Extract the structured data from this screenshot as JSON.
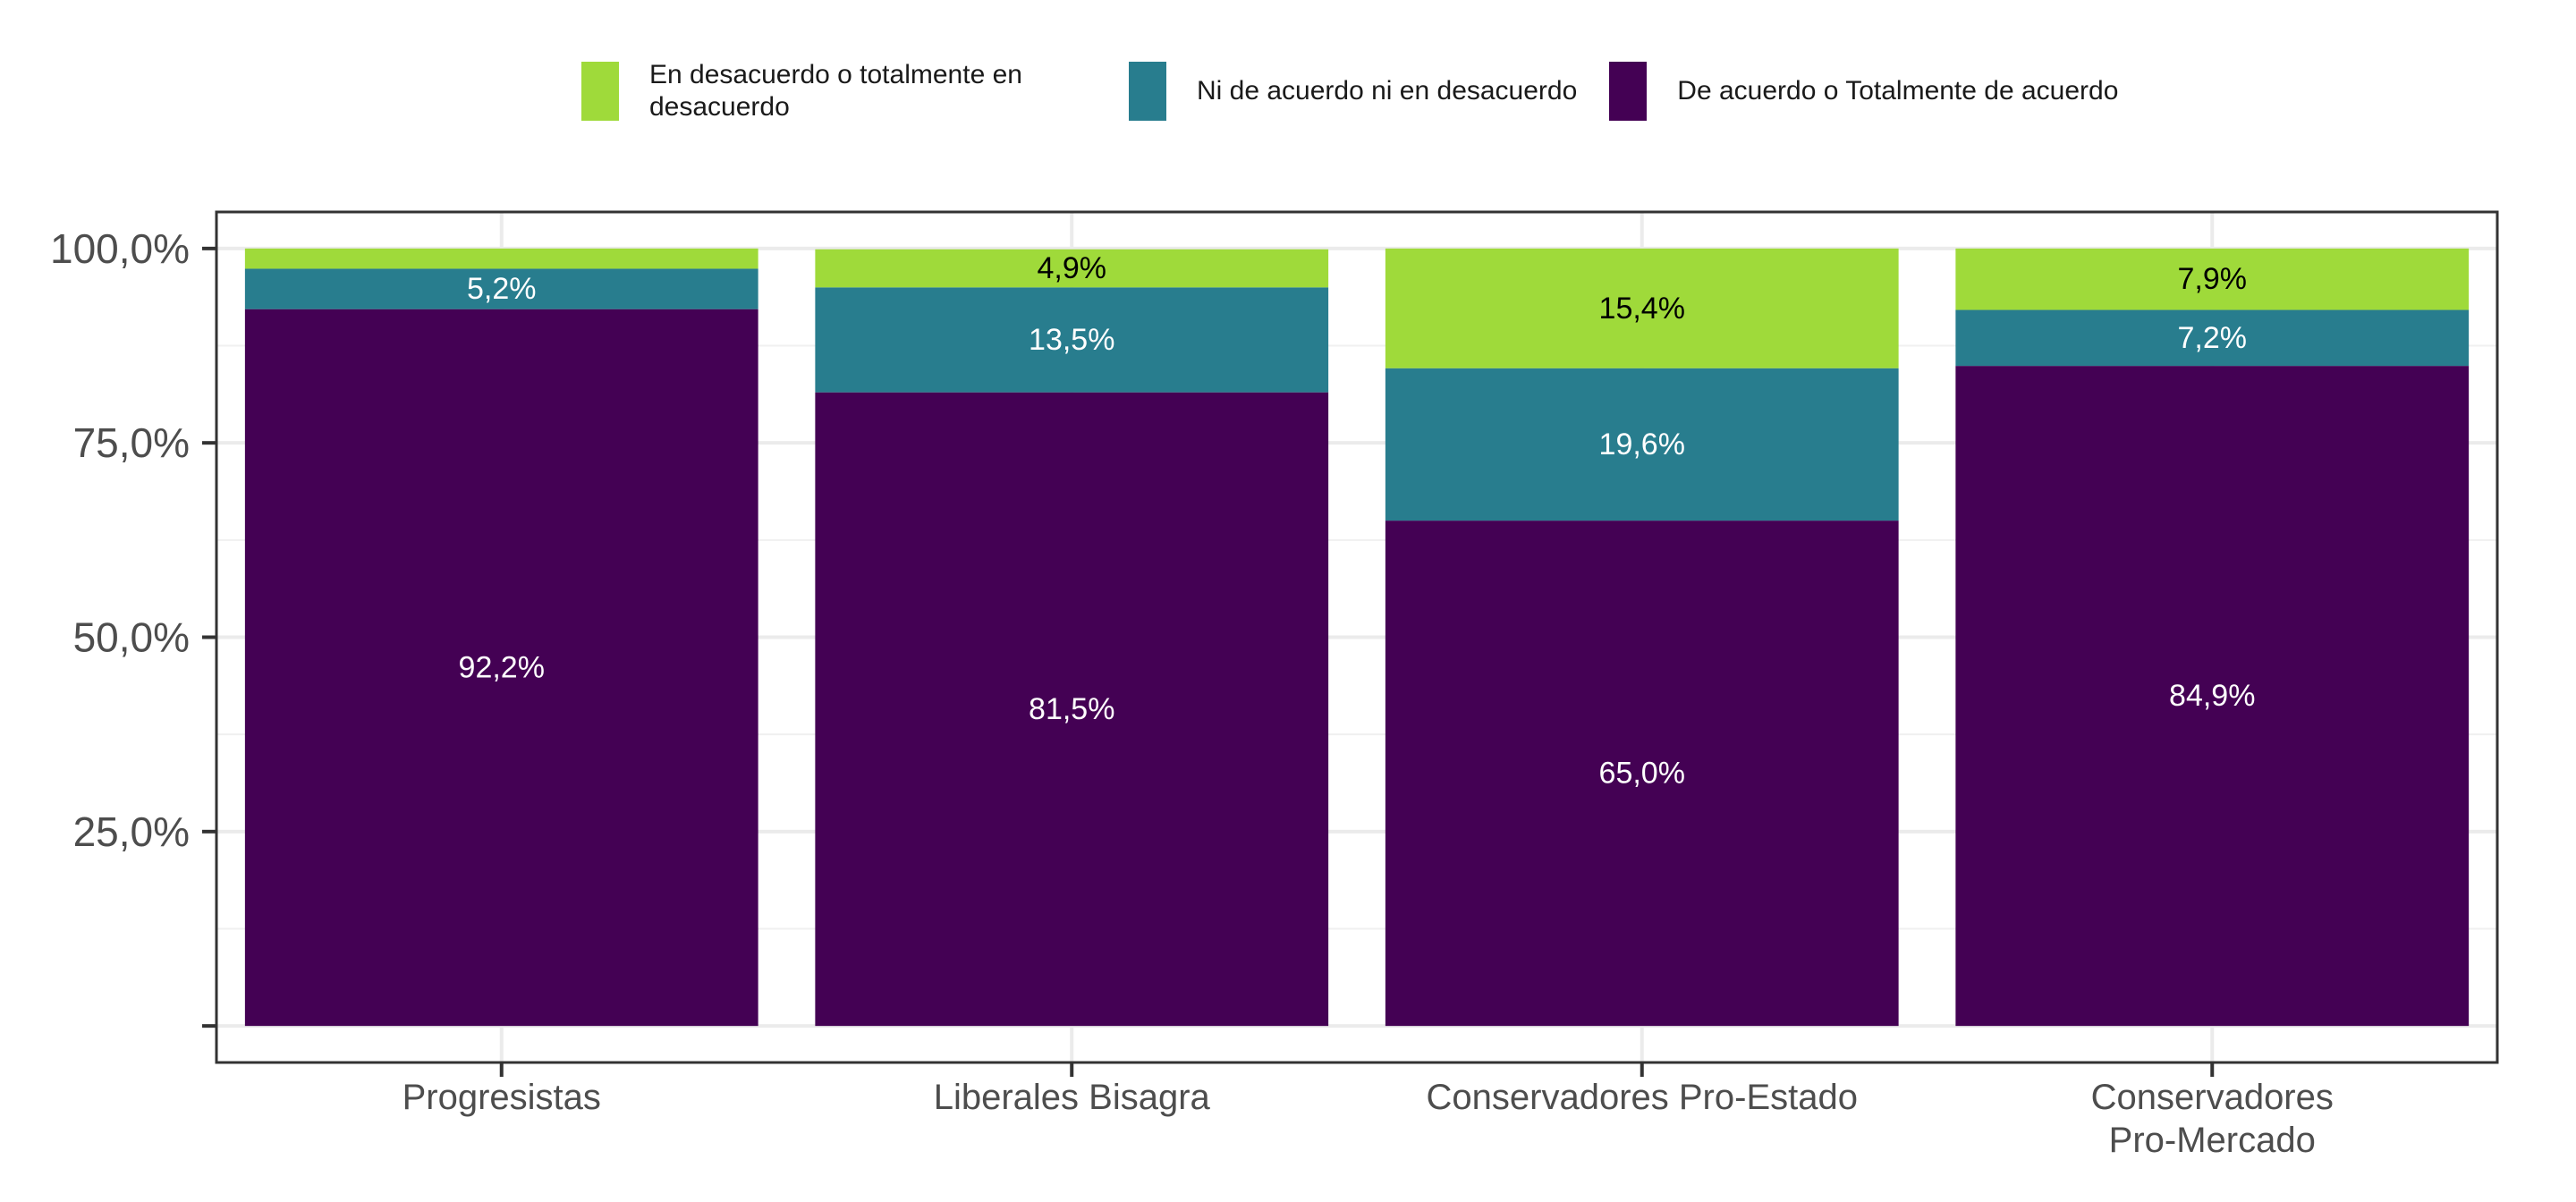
{
  "chart_data": {
    "type": "bar",
    "stacked": true,
    "categories": [
      "Progresistas",
      "Liberales Bisagra",
      "Conservadores Pro-Estado",
      "Conservadores\nPro-Mercado"
    ],
    "series": [
      {
        "name": "De acuerdo o Totalmente de acuerdo",
        "color": "#440154",
        "values": [
          92.2,
          81.5,
          65.0,
          84.9
        ],
        "labels": [
          "92,2%",
          "81,5%",
          "65,0%",
          "84,9%"
        ],
        "label_color": "#ffffff"
      },
      {
        "name": "Ni de acuerdo ni en desacuerdo",
        "color": "#287d8e",
        "values": [
          5.2,
          13.5,
          19.6,
          7.2
        ],
        "labels": [
          "5,2%",
          "13,5%",
          "19,6%",
          "7,2%"
        ],
        "label_color": "#ffffff"
      },
      {
        "name": "En desacuerdo o totalmente en desacuerdo",
        "color": "#9fda3a",
        "values": [
          2.6,
          4.9,
          15.4,
          7.9
        ],
        "labels": [
          "",
          "4,9%",
          "15,4%",
          "7,9%"
        ],
        "label_color": "#000000"
      }
    ],
    "y_ticks": [
      {
        "value": 0,
        "label": ""
      },
      {
        "value": 25,
        "label": "25,0%"
      },
      {
        "value": 50,
        "label": "50,0%"
      },
      {
        "value": 75,
        "label": "75,0%"
      },
      {
        "value": 100,
        "label": "100,0%"
      }
    ],
    "ylim": [
      -4.7,
      104.7
    ],
    "grid": true,
    "legend_position": "top",
    "title": "",
    "xlabel": "",
    "ylabel": ""
  },
  "legend": [
    {
      "label": "En desacuerdo o totalmente en desacuerdo",
      "color": "#9fda3a"
    },
    {
      "label": "Ni de acuerdo ni en desacuerdo",
      "color": "#287d8e"
    },
    {
      "label": "De acuerdo o Totalmente de acuerdo",
      "color": "#440154"
    }
  ]
}
